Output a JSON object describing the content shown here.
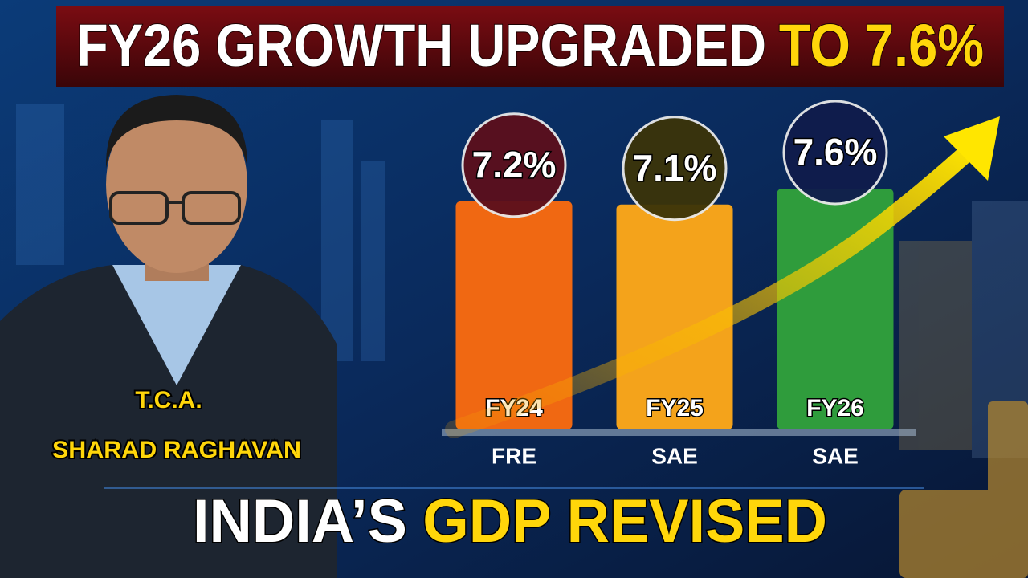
{
  "headline": {
    "lead": "FY26 GROWTH UPGRADED",
    "highlight": "TO 7.6%"
  },
  "person": {
    "initials": "T.C.A.",
    "name": "SHARAD RAGHAVAN"
  },
  "footer": {
    "lead": "INDIA’S",
    "highlight": "GDP REVISED"
  },
  "chart_data": {
    "type": "bar",
    "categories": [
      "FY24",
      "FY25",
      "FY26"
    ],
    "sublabels": [
      "FRE",
      "SAE",
      "SAE"
    ],
    "values": [
      7.2,
      7.1,
      7.6
    ],
    "value_labels": [
      "7.2%",
      "7.1%",
      "7.6%"
    ],
    "colors": [
      "#f06812",
      "#f4a31b",
      "#2f9c3c"
    ],
    "badge_colors": [
      "#5c0f1c",
      "#3b3409",
      "#101c4c"
    ]
  }
}
